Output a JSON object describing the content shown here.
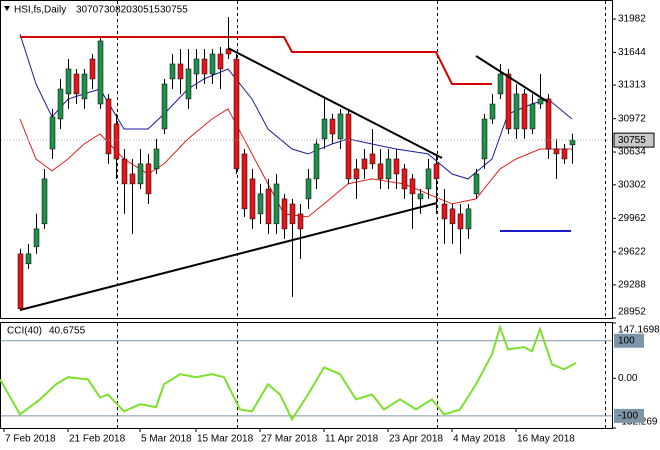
{
  "chart_data": [
    {
      "type": "candlestick",
      "title": "HSI,fs,Daily",
      "categories": [
        "7 Feb 2018",
        null,
        null,
        null,
        null,
        null,
        null,
        null,
        "21 Feb 2018",
        null,
        null,
        null,
        null,
        null,
        null,
        null,
        null,
        "5 Mar 2018",
        null,
        null,
        null,
        null,
        null,
        null,
        "15 Mar 2018",
        null,
        null,
        null,
        null,
        null,
        null,
        null,
        "27 Mar 2018",
        null,
        null,
        null,
        null,
        null,
        null,
        null,
        "11 Apr 2018",
        null,
        null,
        null,
        null,
        null,
        null,
        null,
        "23 Apr 2018",
        null,
        null,
        null,
        null,
        null,
        null,
        null,
        "4 May 2018",
        null,
        null,
        null,
        null,
        null,
        null,
        null,
        "16 May 2018",
        null,
        null,
        null,
        null,
        null
      ],
      "open": [
        29602,
        29501,
        29673,
        29906,
        30665,
        30969,
        31223,
        31425,
        31172,
        31577,
        31121,
        31172,
        30919,
        30564,
        30412,
        30311,
        30514,
        30463,
        30868,
        31375,
        31527,
        31172,
        31425,
        31577,
        31425,
        31628,
        31678,
        31577,
        30615,
        30362,
        30007,
        30260,
        29906,
        30159,
        30108,
        30007,
        30159,
        30362,
        30767,
        30969,
        30767,
        31020,
        30463,
        30564,
        30615,
        30514,
        30362,
        30564,
        30463,
        30362,
        30159,
        30260,
        30514,
        30108,
        30058,
        30007,
        29855,
        30210,
        30564,
        30969,
        31223,
        31425,
        30868,
        31223,
        30868,
        31121,
        31172,
        30665,
        30665,
        30707
      ],
      "high": [
        29652,
        29703,
        30007,
        30463,
        31071,
        31375,
        31577,
        31476,
        31476,
        31628,
        31800,
        31223,
        31020,
        30665,
        30564,
        30665,
        30615,
        30767,
        31375,
        31628,
        31678,
        31678,
        31678,
        31678,
        31678,
        31699,
        32003,
        31628,
        30665,
        30463,
        30311,
        30362,
        30412,
        30210,
        30159,
        30108,
        30463,
        30767,
        31172,
        31020,
        31071,
        31071,
        30564,
        30665,
        30868,
        30665,
        30665,
        30665,
        30514,
        30412,
        30260,
        30564,
        30615,
        30260,
        30108,
        30108,
        30108,
        30463,
        31020,
        31223,
        31527,
        31476,
        31324,
        31273,
        31223,
        31425,
        31223,
        30767,
        30716,
        30820
      ],
      "low": [
        29024,
        29450,
        29602,
        29855,
        30564,
        30868,
        31071,
        31121,
        31071,
        31273,
        31071,
        30514,
        30362,
        30007,
        29804,
        30260,
        30108,
        30412,
        30817,
        31273,
        31223,
        31071,
        31273,
        31324,
        31324,
        31273,
        31577,
        30412,
        29977,
        29855,
        29906,
        29804,
        29804,
        29754,
        29166,
        29551,
        30058,
        30260,
        30665,
        30716,
        30665,
        30311,
        30159,
        30362,
        30463,
        30260,
        30260,
        30260,
        30159,
        29855,
        30007,
        30159,
        30007,
        29703,
        29703,
        29602,
        29754,
        30159,
        30463,
        30919,
        31172,
        30817,
        30767,
        30767,
        30817,
        31071,
        30564,
        30362,
        30514,
        30515
      ],
      "close": [
        29045,
        29602,
        29855,
        30362,
        30990,
        31273,
        31476,
        31223,
        31425,
        31375,
        31760,
        30615,
        30564,
        30311,
        30311,
        30514,
        30210,
        30665,
        31324,
        31527,
        31375,
        31476,
        31577,
        31425,
        31628,
        31476,
        31628,
        30463,
        30058,
        29956,
        30210,
        29906,
        30311,
        29855,
        29906,
        29855,
        30362,
        30716,
        30969,
        30817,
        31020,
        30362,
        30362,
        30463,
        30514,
        30362,
        30564,
        30412,
        30260,
        30210,
        30210,
        30463,
        30362,
        29956,
        29906,
        29855,
        30058,
        30412,
        30969,
        31121,
        31425,
        30868,
        31223,
        30868,
        31121,
        31172,
        30665,
        30615,
        30564,
        30755
      ],
      "up_color": "#1f8f4a",
      "down_color": "#e3161b",
      "ylim": [
        28952,
        32165
      ],
      "yticks": [
        31982,
        31644,
        31313,
        30972,
        30634,
        30302,
        29962,
        29622,
        29288,
        28952
      ],
      "lines": [
        {
          "color": "#1a1a9c",
          "line_width": 1,
          "x": [
            0,
            2,
            4,
            6,
            10,
            13,
            16,
            18,
            21,
            23,
            26,
            29,
            31,
            34,
            36,
            39,
            41,
            44,
            47,
            51,
            54,
            56,
            59,
            61,
            64,
            66,
            69
          ],
          "values": [
            31830,
            31324,
            30990,
            31172,
            31273,
            30868,
            30868,
            31020,
            31273,
            31375,
            31476,
            31172,
            30868,
            30665,
            30615,
            30716,
            30767,
            30716,
            30665,
            30615,
            30412,
            30362,
            30564,
            31020,
            31121,
            31172,
            30969
          ]
        },
        {
          "color": "#e32020",
          "line_width": 1,
          "x": [
            0,
            2,
            4,
            6,
            8,
            10,
            13,
            16,
            18,
            21,
            24,
            26,
            28,
            31,
            33,
            36,
            38,
            41,
            44,
            48,
            51,
            54,
            57,
            60,
            62,
            65,
            69
          ],
          "values": [
            30969,
            30564,
            30443,
            30564,
            30716,
            30817,
            30564,
            30412,
            30514,
            30767,
            30969,
            31071,
            30767,
            30311,
            30007,
            29977,
            30108,
            30311,
            30362,
            30311,
            30210,
            30108,
            30159,
            30463,
            30564,
            30665,
            30665
          ]
        },
        {
          "color": "#d60000",
          "line_width": 2,
          "x": [
            0,
            33,
            34,
            52,
            54,
            59
          ],
          "values": [
            31800,
            31800,
            31648,
            31648,
            31324,
            31324
          ]
        }
      ]
    },
    {
      "type": "line",
      "title": "CCI(40)",
      "color": "#7be12b",
      "x": [
        -2.5,
        0,
        2.5,
        4.5,
        6,
        8.5,
        10,
        11,
        13,
        15,
        17,
        18,
        20,
        22,
        24,
        25.5,
        27.5,
        29,
        31,
        32.5,
        34,
        36,
        38,
        40,
        42,
        44,
        45.5,
        47.5,
        49.5,
        51.5,
        53,
        55,
        57,
        59,
        60,
        61,
        63,
        64,
        65,
        66.5,
        68,
        69.5
      ],
      "values": [
        -3,
        -96,
        -56,
        -16,
        3,
        -3,
        -51,
        -43,
        -88,
        -69,
        -77,
        -16,
        11,
        3,
        11,
        3,
        -83,
        -88,
        -16,
        -43,
        -109,
        -43,
        29,
        11,
        -56,
        -43,
        -83,
        -56,
        -83,
        -56,
        -96,
        -83,
        -16,
        64,
        136,
        77,
        83,
        72,
        131,
        37,
        24,
        40.6755
      ],
      "ylim": [
        -132.269,
        147.1698
      ],
      "yticks": [
        147.1698,
        {
          "value": 0,
          "label": "0.00"
        },
        -132.269
      ],
      "levels": [
        100,
        -100
      ],
      "level_color": "#7c95a8"
    }
  ]
}
